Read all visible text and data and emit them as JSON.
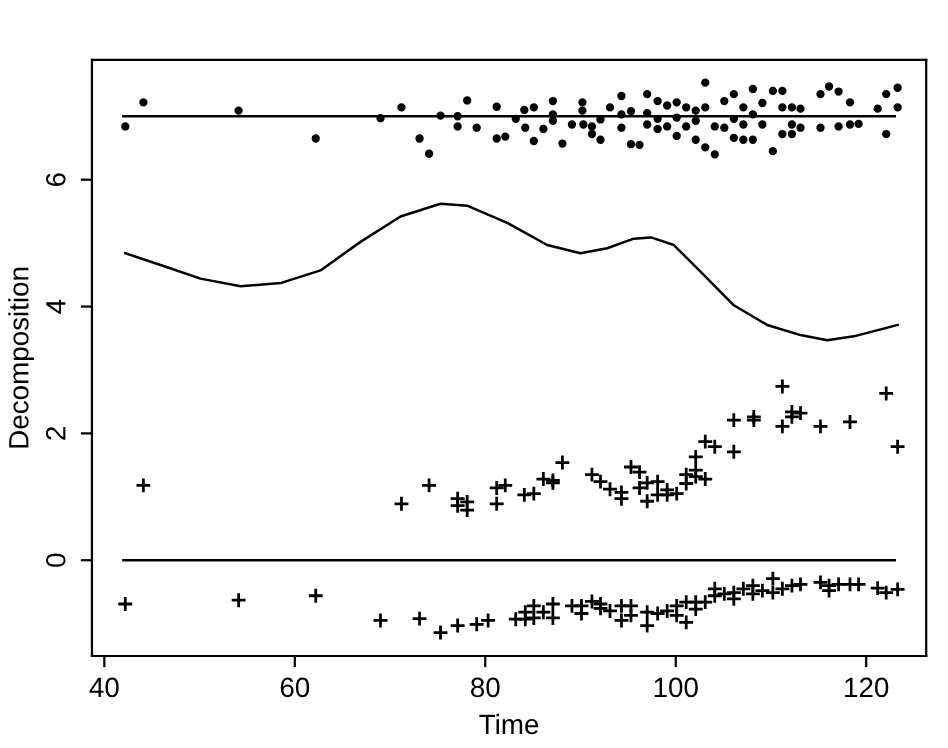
{
  "chart_data": {
    "type": "scatter",
    "xlabel": "Time",
    "ylabel": "Decomposition",
    "xlim": [
      38.7,
      126.3
    ],
    "ylim": [
      -1.51,
      7.89
    ],
    "xticks": [
      40,
      60,
      80,
      100,
      120
    ],
    "yticks": [
      0,
      2,
      4,
      6
    ],
    "grid": false,
    "series": [
      {
        "type": "line",
        "color": "#000000",
        "marker": "none",
        "x": [
          42,
          123
        ],
        "values": [
          7,
          7
        ]
      },
      {
        "color": "#000000",
        "marker": "circle",
        "x": [
          42.2,
          44.1,
          54.1,
          62.2,
          69.0,
          71.2,
          73.1,
          74.1,
          75.3,
          77.1,
          77.1,
          78.1,
          79.1,
          81.2,
          81.2,
          82.1,
          83.2,
          84.1,
          85.1,
          84.2,
          85.1,
          86.1,
          87.1,
          87.1,
          87.1,
          88.1,
          89.1,
          90.2,
          90.2,
          90.3,
          91.2,
          91.2,
          92.1,
          92.1,
          93.1,
          94.3,
          94.3,
          94.3,
          95.3,
          95.3,
          96.2,
          97.0,
          97.0,
          97.0,
          98.1,
          98.1,
          98.1,
          99.1,
          99.1,
          100.1,
          100.1,
          100.1,
          101.1,
          101.1,
          102.1,
          102.1,
          102.1,
          103.1,
          103.1,
          103.1,
          104.1,
          104.1,
          105.1,
          105.1,
          106.1,
          106.1,
          106.1,
          107.1,
          107.1,
          107.1,
          108.1,
          108.1,
          108.1,
          109.1,
          109.1,
          110.2,
          110.2,
          111.2,
          111.2,
          111.2,
          112.2,
          112.2,
          112.2,
          113.1,
          113.1,
          115.2,
          115.2,
          116.1,
          117.1,
          117.1,
          118.3,
          118.3,
          119.2,
          121.2,
          122.1,
          122.1,
          123.3,
          123.3
        ],
        "values": [
          6.84,
          7.22,
          7.09,
          6.65,
          6.97,
          7.14,
          6.65,
          6.41,
          7.01,
          7.0,
          6.84,
          7.25,
          6.82,
          7.15,
          6.65,
          6.68,
          6.96,
          7.1,
          7.14,
          6.82,
          6.61,
          6.8,
          7.24,
          7.03,
          6.93,
          6.57,
          6.87,
          7.22,
          7.09,
          6.87,
          6.84,
          6.72,
          6.95,
          6.63,
          7.14,
          7.32,
          7.03,
          6.82,
          7.08,
          6.56,
          6.55,
          7.35,
          7.05,
          6.87,
          7.24,
          6.96,
          6.8,
          7.17,
          6.84,
          7.22,
          6.98,
          6.69,
          7.14,
          6.84,
          7.09,
          6.93,
          6.63,
          7.53,
          7.14,
          6.51,
          6.84,
          6.4,
          7.24,
          6.82,
          7.35,
          6.96,
          6.66,
          7.14,
          6.87,
          6.63,
          7.43,
          7.03,
          6.63,
          7.21,
          6.87,
          7.4,
          6.45,
          7.4,
          7.14,
          6.72,
          7.14,
          6.87,
          6.72,
          7.12,
          6.82,
          7.35,
          6.82,
          7.47,
          7.39,
          6.84,
          7.22,
          6.87,
          6.88,
          7.12,
          7.35,
          6.72,
          7.45,
          7.14
        ]
      },
      {
        "type": "line",
        "color": "#000000",
        "marker": "none",
        "x": [
          42.2,
          46.6,
          50.1,
          54.3,
          58.5,
          62.7,
          66.9,
          71.1,
          75.3,
          78.1,
          82.3,
          86.5,
          90.0,
          92.8,
          95.6,
          97.4,
          99.8,
          102.6,
          106.1,
          109.6,
          113.1,
          115.9,
          118.7,
          123.3
        ],
        "values": [
          4.84,
          4.62,
          4.44,
          4.32,
          4.37,
          4.57,
          5.02,
          5.42,
          5.62,
          5.59,
          5.32,
          4.97,
          4.84,
          4.92,
          5.07,
          5.09,
          4.97,
          4.55,
          4.02,
          3.71,
          3.55,
          3.47,
          3.53,
          3.71
        ]
      },
      {
        "color": "#000000",
        "marker": "cross",
        "x": [
          44.1,
          71.2,
          74.1,
          77.1,
          77.1,
          78.1,
          78.1,
          81.2,
          81.2,
          82.1,
          84.1,
          85.1,
          86.1,
          87.1,
          87.1,
          88.1,
          91.2,
          92.1,
          93.1,
          94.3,
          94.3,
          95.3,
          96.2,
          96.2,
          97.0,
          97.0,
          98.1,
          98.1,
          99.1,
          99.1,
          100.1,
          101.1,
          101.1,
          102.1,
          102.1,
          102.1,
          103.1,
          103.1,
          104.1,
          106.1,
          106.1,
          108.2,
          108.2,
          111.2,
          111.2,
          112.2,
          112.2,
          113.1,
          115.2,
          118.3,
          122.1,
          123.3
        ],
        "values": [
          1.18,
          0.89,
          1.18,
          0.97,
          0.86,
          0.92,
          0.79,
          1.14,
          0.89,
          1.18,
          1.03,
          1.05,
          1.28,
          1.22,
          1.26,
          1.54,
          1.35,
          1.24,
          1.12,
          1.07,
          0.97,
          1.47,
          1.39,
          1.14,
          1.22,
          0.93,
          1.24,
          1.03,
          1.11,
          1.03,
          1.05,
          1.21,
          1.35,
          1.63,
          1.42,
          1.32,
          1.87,
          1.28,
          1.79,
          2.21,
          1.71,
          2.26,
          2.21,
          2.74,
          2.11,
          2.34,
          2.26,
          2.32,
          2.11,
          2.18,
          2.63,
          1.79
        ]
      },
      {
        "type": "line",
        "color": "#000000",
        "marker": "none",
        "x": [
          42,
          123
        ],
        "values": [
          0,
          0
        ]
      },
      {
        "color": "#000000",
        "marker": "cross",
        "x": [
          42.2,
          54.1,
          62.2,
          69.0,
          73.1,
          75.3,
          77.1,
          79.1,
          80.3,
          83.2,
          84.2,
          84.2,
          85.1,
          85.1,
          86.1,
          87.1,
          87.1,
          89.1,
          90.1,
          90.1,
          91.2,
          92.1,
          92.1,
          93.1,
          94.3,
          94.3,
          95.3,
          95.3,
          97.0,
          97.0,
          98.1,
          99.1,
          100.1,
          100.1,
          101.1,
          101.1,
          102.1,
          102.1,
          103.1,
          104.1,
          104.1,
          105.1,
          106.1,
          106.1,
          107.1,
          108.1,
          108.1,
          109.1,
          110.2,
          110.2,
          111.2,
          112.2,
          113.1,
          115.2,
          116.1,
          116.1,
          117.1,
          118.3,
          119.2,
          121.2,
          122.1,
          123.3
        ],
        "values": [
          -0.69,
          -0.63,
          -0.56,
          -0.95,
          -0.92,
          -1.14,
          -1.03,
          -1.01,
          -0.95,
          -0.93,
          -0.82,
          -0.93,
          -0.72,
          -0.91,
          -0.82,
          -0.69,
          -0.91,
          -0.72,
          -0.72,
          -0.84,
          -0.65,
          -0.69,
          -0.76,
          -0.8,
          -0.72,
          -0.95,
          -0.72,
          -0.87,
          -0.82,
          -1.03,
          -0.84,
          -0.8,
          -0.72,
          -0.87,
          -0.66,
          -0.98,
          -0.66,
          -0.77,
          -0.66,
          -0.45,
          -0.56,
          -0.53,
          -0.51,
          -0.61,
          -0.45,
          -0.4,
          -0.53,
          -0.48,
          -0.29,
          -0.51,
          -0.45,
          -0.4,
          -0.38,
          -0.35,
          -0.4,
          -0.48,
          -0.38,
          -0.38,
          -0.38,
          -0.44,
          -0.51,
          -0.46
        ]
      }
    ]
  }
}
